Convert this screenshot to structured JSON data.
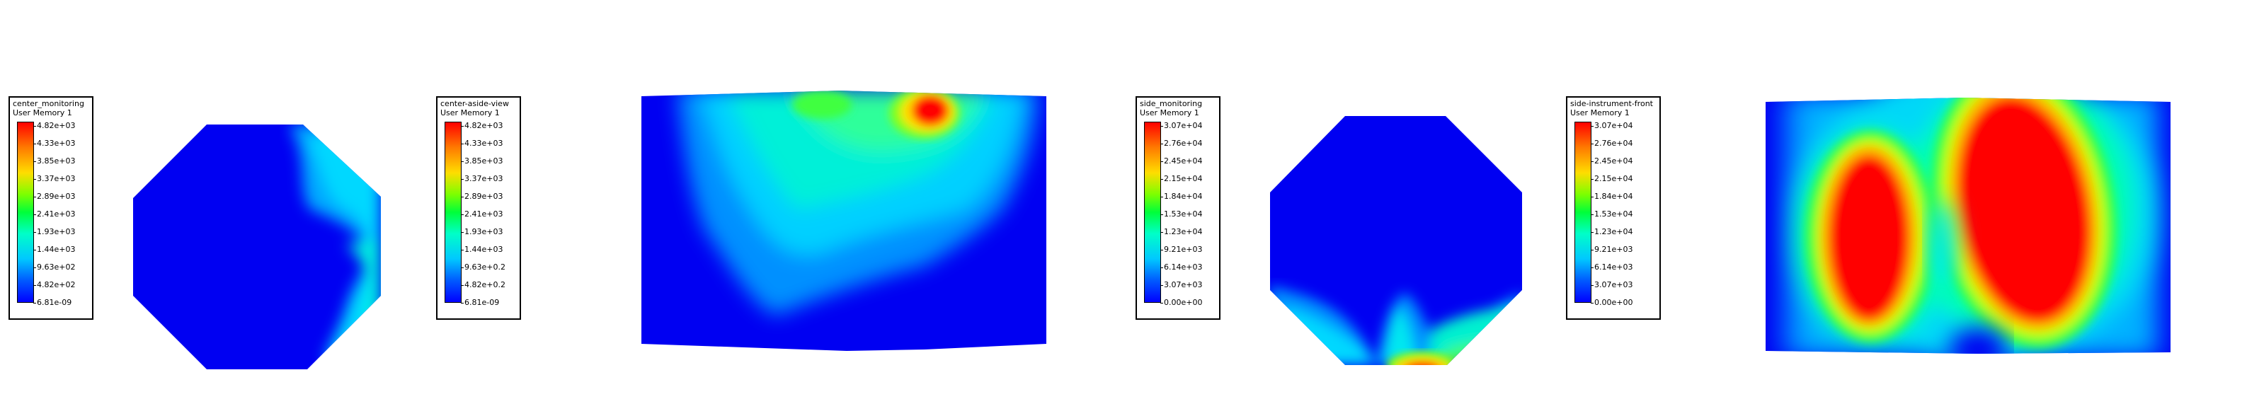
{
  "panels": [
    {
      "legend": {
        "title": "center_monitoring",
        "subtitle": "User Memory 1",
        "ticks": [
          "4.82e+03",
          "4.33e+03",
          "3.85e+03",
          "3.37e+03",
          "2.89e+03",
          "2.41e+03",
          "1.93e+03",
          "1.44e+03",
          "9.63e+02",
          "4.82e+02",
          "6.81e-09"
        ]
      }
    },
    {
      "legend": {
        "title": "center-aside-view",
        "subtitle": "User Memory 1",
        "ticks": [
          "4.82e+03",
          "4.33e+03",
          "3.85e+03",
          "3.37e+03",
          "2.89e+03",
          "2.41e+03",
          "1.93e+03",
          "1.44e+03",
          "9.63e+0.2",
          "4.82e+0.2",
          "6.81e-09"
        ]
      }
    },
    {
      "legend": {
        "title": "side_monitoring",
        "subtitle": "User Memory 1",
        "ticks": [
          "3.07e+04",
          "2.76e+04",
          "2.45e+04",
          "2.15e+04",
          "1.84e+04",
          "1.53e+04",
          "1.23e+04",
          "9.21e+03",
          "6.14e+03",
          "3.07e+03",
          "0.00e+00"
        ]
      }
    },
    {
      "legend": {
        "title": "side-instrument-front",
        "subtitle": "User Memory 1",
        "ticks": [
          "3.07e+04",
          "2.76e+04",
          "2.45e+04",
          "2.15e+04",
          "1.84e+04",
          "1.53e+04",
          "1.23e+04",
          "9.21e+03",
          "6.14e+03",
          "3.07e+03",
          "0.00e+00"
        ]
      }
    }
  ]
}
